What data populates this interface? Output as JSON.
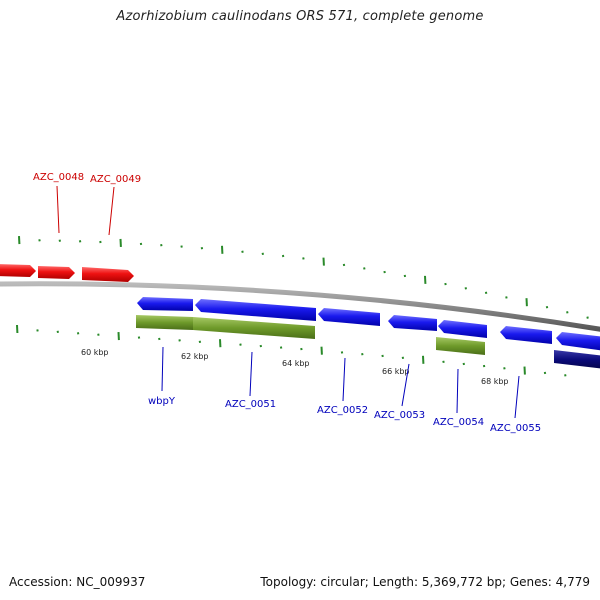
{
  "title": "Azorhizobium caulinodans ORS 571, complete genome",
  "footer": {
    "accession": "Accession: NC_009937",
    "summary": "Topology: circular; Length: 5,369,772 bp; Genes: 4,779"
  },
  "colors": {
    "forward_gene": "#ee1111",
    "reverse_gene": "#1a1aee",
    "dark_gene": "#0a0a7a",
    "olive_feature": "#6e9a2a",
    "backbone": "#888888",
    "tick": "#2a8a2a",
    "label_forward": "#cc0000",
    "label_reverse": "#0000bb"
  },
  "kbp_labels": [
    "60 kbp",
    "62 kbp",
    "64 kbp",
    "66 kbp",
    "68 kbp"
  ],
  "forward_genes": [
    "AZC_0048",
    "AZC_0049"
  ],
  "reverse_genes": [
    "wbpY",
    "AZC_0051",
    "AZC_0052",
    "AZC_0053",
    "AZC_0054",
    "AZC_0055"
  ]
}
